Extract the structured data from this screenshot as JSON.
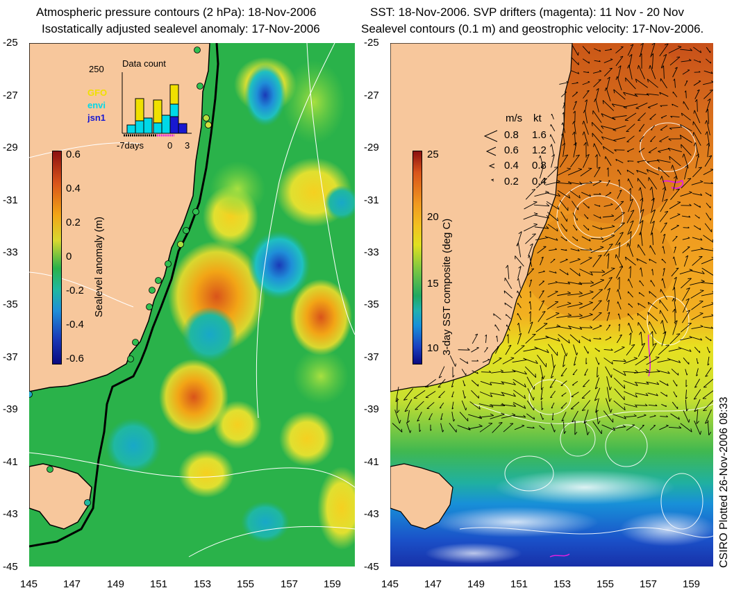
{
  "left_panel": {
    "title_line1": "Atmospheric pressure contours (2 hPa): 18-Nov-2006",
    "title_line2": "Isostatically adjusted sealevel anomaly: 17-Nov-2006",
    "colorbar": {
      "label": "Sealevel anomaly (m)",
      "ticks": [
        "0.6",
        "0.4",
        "0.2",
        "0",
        "-0.2",
        "-0.4",
        "-0.6"
      ],
      "range": [
        -0.6,
        0.6
      ]
    },
    "inset": {
      "title": "Data count",
      "ymax_label": "250",
      "legend": [
        {
          "name": "GFO",
          "color": "#f0e000"
        },
        {
          "name": "envi",
          "color": "#00d8e8"
        },
        {
          "name": "jsn1",
          "color": "#1818d0"
        }
      ],
      "x_labels": [
        "-7days",
        "0",
        "3"
      ]
    }
  },
  "right_panel": {
    "title_line1": "SST: 18-Nov-2006. SVP drifters (magenta): 11 Nov - 20 Nov",
    "title_line2": "Sealevel contours (0.1 m) and geostrophic velocity: 17-Nov-2006.",
    "colorbar": {
      "label": "3-day SST composite (deg C)",
      "ticks": [
        "25",
        "20",
        "15",
        "10"
      ],
      "range": [
        8,
        25
      ]
    },
    "velocity_legend": {
      "header_ms": "m/s",
      "header_kt": "kt",
      "rows": [
        {
          "ms": "0.8",
          "kt": "1.6"
        },
        {
          "ms": "0.6",
          "kt": "1.2"
        },
        {
          "ms": "0.4",
          "kt": "0.8"
        },
        {
          "ms": "0.2",
          "kt": "0.4"
        }
      ]
    }
  },
  "axes": {
    "y_ticks": [
      "-25",
      "-27",
      "-29",
      "-31",
      "-33",
      "-35",
      "-37",
      "-39",
      "-41",
      "-43",
      "-45"
    ],
    "x_ticks": [
      "145",
      "147",
      "149",
      "151",
      "153",
      "155",
      "157",
      "159"
    ],
    "lat_range": [
      -45,
      -25
    ],
    "lon_range": [
      145,
      160
    ]
  },
  "credit": "CSIRO Plotted 26-Nov-2006 08:33",
  "colors": {
    "land": "#f7c79c",
    "coast": "#000000",
    "contour": "#ffffff",
    "drifter": "#e020e0"
  }
}
